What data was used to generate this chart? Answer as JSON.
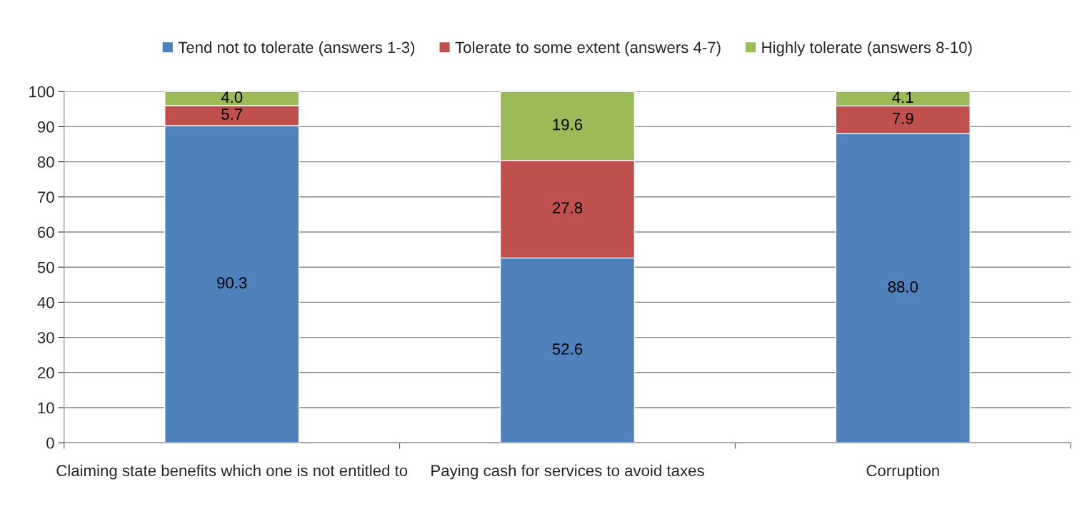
{
  "chart_data": {
    "type": "bar",
    "stacked": true,
    "categories": [
      "Claiming state benefits which one is not entitled to",
      "Paying cash for services to avoid taxes",
      "Corruption"
    ],
    "series": [
      {
        "name": "Tend not to tolerate (answers 1-3)",
        "color": "#4f81bd",
        "values": [
          90.3,
          52.6,
          88.0
        ],
        "value_labels": [
          "90.3",
          "52.6",
          "88.0"
        ]
      },
      {
        "name": "Tolerate to some extent (answers 4-7)",
        "color": "#c0504d",
        "values": [
          5.7,
          27.8,
          7.9
        ],
        "value_labels": [
          "5.7",
          "27.8",
          "7.9"
        ]
      },
      {
        "name": "Highly tolerate (answers 8-10)",
        "color": "#9bbb59",
        "values": [
          4.0,
          19.6,
          4.1
        ],
        "value_labels": [
          "4.0",
          "19.6",
          "4.1"
        ]
      }
    ],
    "ylim": [
      0,
      100
    ],
    "yticks": [
      0,
      10,
      20,
      30,
      40,
      50,
      60,
      70,
      80,
      90,
      100
    ],
    "grid": "y",
    "legend": "top"
  }
}
